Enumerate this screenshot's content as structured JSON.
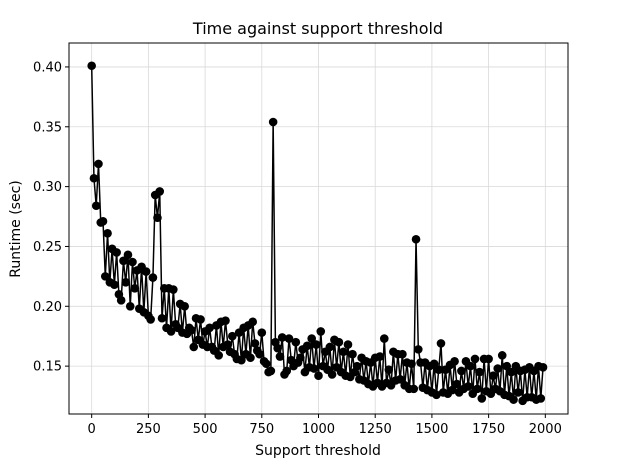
{
  "chart_data": {
    "type": "line",
    "title": "Time against support threshold",
    "xlabel": "Support threshold",
    "ylabel": "Runtime (sec)",
    "xlim": [
      -100,
      2100
    ],
    "ylim": [
      0.11,
      0.42
    ],
    "xticks": [
      0,
      250,
      500,
      750,
      1000,
      1250,
      1500,
      1750,
      2000
    ],
    "yticks": [
      0.15,
      0.2,
      0.25,
      0.3,
      0.35,
      0.4
    ],
    "ytick_labels": [
      "0.15",
      "0.20",
      "0.25",
      "0.30",
      "0.35",
      "0.40"
    ],
    "grid": true,
    "line_color": "#000000",
    "marker": "circle",
    "series": [
      {
        "x": [
          0,
          10,
          20,
          30,
          40,
          50,
          60,
          70,
          80,
          90,
          100,
          110,
          120,
          130,
          140,
          150,
          160,
          170,
          180,
          190,
          200,
          210,
          220,
          230,
          240,
          250,
          260,
          270,
          280,
          290,
          300,
          310,
          320,
          330,
          340,
          350,
          360,
          370,
          380,
          390,
          400,
          410,
          420,
          430,
          440,
          450,
          460,
          470,
          480,
          490,
          500,
          510,
          520,
          530,
          540,
          550,
          560,
          570,
          580,
          590,
          600,
          610,
          620,
          630,
          640,
          650,
          660,
          670,
          680,
          690,
          700,
          710,
          720,
          730,
          740,
          750,
          760,
          770,
          780,
          790,
          800,
          810,
          820,
          830,
          840,
          850,
          860,
          870,
          880,
          890,
          900,
          910,
          920,
          930,
          940,
          950,
          960,
          970,
          980,
          990,
          1000,
          1010,
          1020,
          1030,
          1040,
          1050,
          1060,
          1070,
          1080,
          1090,
          1100,
          1110,
          1120,
          1130,
          1140,
          1150,
          1160,
          1170,
          1180,
          1190,
          1200,
          1210,
          1220,
          1230,
          1240,
          1250,
          1260,
          1270,
          1280,
          1290,
          1300,
          1310,
          1320,
          1330,
          1340,
          1350,
          1360,
          1370,
          1380,
          1390,
          1400,
          1410,
          1420,
          1430,
          1440,
          1450,
          1460,
          1470,
          1480,
          1490,
          1500,
          1510,
          1520,
          1530,
          1540,
          1550,
          1560,
          1570,
          1580,
          1590,
          1600,
          1610,
          1620,
          1630,
          1640,
          1650,
          1660,
          1670,
          1680,
          1690,
          1700,
          1710,
          1720,
          1730,
          1740,
          1750,
          1760,
          1770,
          1780,
          1790,
          1800,
          1810,
          1820,
          1830,
          1840,
          1850,
          1860,
          1870,
          1880,
          1890,
          1900,
          1910,
          1920,
          1930,
          1940,
          1950,
          1960,
          1970,
          1980,
          1990
        ],
        "y": [
          0.401,
          0.307,
          0.284,
          0.319,
          0.27,
          0.271,
          0.225,
          0.261,
          0.22,
          0.248,
          0.218,
          0.245,
          0.21,
          0.205,
          0.238,
          0.22,
          0.243,
          0.2,
          0.237,
          0.215,
          0.23,
          0.198,
          0.233,
          0.195,
          0.229,
          0.192,
          0.189,
          0.224,
          0.293,
          0.274,
          0.296,
          0.19,
          0.215,
          0.182,
          0.215,
          0.179,
          0.214,
          0.185,
          0.182,
          0.202,
          0.178,
          0.2,
          0.177,
          0.182,
          0.18,
          0.166,
          0.19,
          0.172,
          0.189,
          0.168,
          0.179,
          0.166,
          0.182,
          0.166,
          0.163,
          0.184,
          0.159,
          0.187,
          0.166,
          0.188,
          0.168,
          0.162,
          0.175,
          0.16,
          0.156,
          0.178,
          0.155,
          0.182,
          0.16,
          0.184,
          0.157,
          0.187,
          0.169,
          0.163,
          0.16,
          0.178,
          0.154,
          0.152,
          0.145,
          0.146,
          0.354,
          0.17,
          0.165,
          0.158,
          0.174,
          0.143,
          0.146,
          0.173,
          0.155,
          0.15,
          0.17,
          0.153,
          0.157,
          0.164,
          0.145,
          0.167,
          0.149,
          0.173,
          0.148,
          0.168,
          0.142,
          0.179,
          0.15,
          0.162,
          0.147,
          0.166,
          0.143,
          0.172,
          0.149,
          0.17,
          0.145,
          0.162,
          0.142,
          0.168,
          0.141,
          0.16,
          0.145,
          0.15,
          0.139,
          0.157,
          0.138,
          0.154,
          0.135,
          0.153,
          0.133,
          0.157,
          0.136,
          0.158,
          0.133,
          0.173,
          0.136,
          0.147,
          0.134,
          0.162,
          0.138,
          0.16,
          0.139,
          0.16,
          0.134,
          0.153,
          0.131,
          0.152,
          0.131,
          0.256,
          0.164,
          0.153,
          0.132,
          0.153,
          0.13,
          0.15,
          0.128,
          0.152,
          0.126,
          0.147,
          0.169,
          0.128,
          0.147,
          0.127,
          0.151,
          0.13,
          0.154,
          0.135,
          0.128,
          0.146,
          0.131,
          0.154,
          0.133,
          0.15,
          0.127,
          0.156,
          0.131,
          0.145,
          0.123,
          0.156,
          0.129,
          0.156,
          0.127,
          0.142,
          0.131,
          0.148,
          0.129,
          0.159,
          0.126,
          0.15,
          0.125,
          0.145,
          0.122,
          0.15,
          0.128,
          0.146,
          0.121,
          0.147,
          0.124,
          0.149,
          0.124,
          0.146,
          0.122,
          0.15,
          0.123,
          0.149
        ]
      }
    ]
  }
}
